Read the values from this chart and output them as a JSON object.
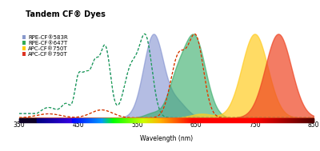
{
  "title": "Tandem CF® Dyes",
  "xlabel": "Wavelength (nm)",
  "xlim": [
    350,
    850
  ],
  "ylim": [
    0,
    1.08
  ],
  "xticks": [
    350,
    450,
    550,
    650,
    750,
    850
  ],
  "legend_labels": [
    "RPE-CF®583R",
    "RPE-CF®647T",
    "APC-CF®750T",
    "APC-CF®790T"
  ],
  "legend_colors": [
    "#8899cc",
    "#33aa55",
    "#ffcc00",
    "#dd3322"
  ],
  "fill_colors": [
    "#7788cc",
    "#33aa66",
    "#ffcc22",
    "#ee4422"
  ],
  "fill_alphas": [
    0.55,
    0.6,
    0.7,
    0.7
  ],
  "dashed_colors": [
    "#4477cc",
    "#22aa44",
    "#ffaa00",
    "#cc2211"
  ],
  "background_color": "#ffffff",
  "title_fontsize": 7,
  "axis_fontsize": 5.5,
  "legend_fontsize": 5.0
}
